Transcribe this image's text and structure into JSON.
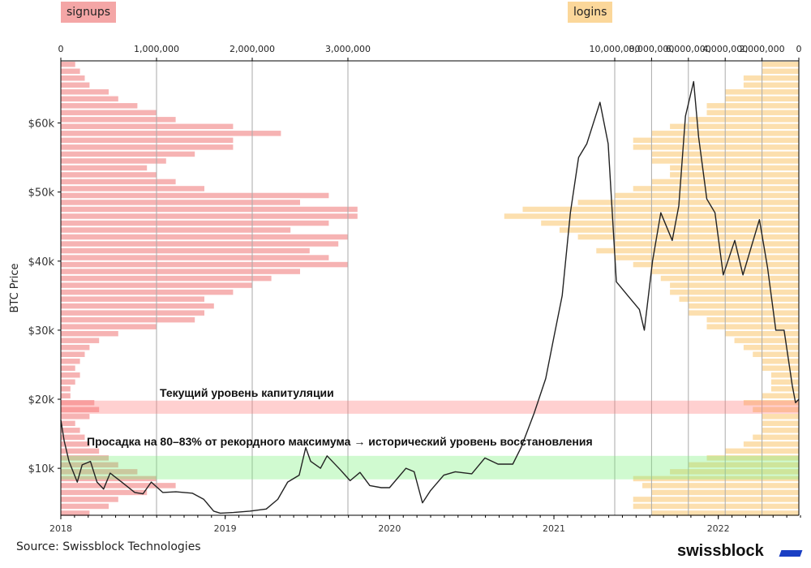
{
  "chart_data": {
    "type": "line",
    "ylabel": "BTC Price",
    "ylim": [
      3200,
      69000
    ],
    "xlim": [
      2018.0,
      2022.49
    ],
    "y_ticks": [
      {
        "v": 10000,
        "label": "$10k"
      },
      {
        "v": 20000,
        "label": "$20k"
      },
      {
        "v": 30000,
        "label": "$30k"
      },
      {
        "v": 40000,
        "label": "$40k"
      },
      {
        "v": 50000,
        "label": "$50k"
      },
      {
        "v": 60000,
        "label": "$60k"
      }
    ],
    "x_ticks": [
      {
        "v": 2018,
        "label": "2018"
      },
      {
        "v": 2019,
        "label": "2019"
      },
      {
        "v": 2020,
        "label": "2020"
      },
      {
        "v": 2021,
        "label": "2021"
      },
      {
        "v": 2022,
        "label": "2022"
      }
    ],
    "top_axis_signups": {
      "range": [
        0,
        7700000
      ],
      "ticks": [
        {
          "v": 0,
          "label": "0"
        },
        {
          "v": 1000000,
          "label": "1,000,000"
        },
        {
          "v": 2000000,
          "label": "2,000,000"
        },
        {
          "v": 3000000,
          "label": "3,000,000"
        }
      ]
    },
    "top_axis_logins": {
      "range_reversed": [
        0,
        40000000
      ],
      "ticks": [
        {
          "v": 0,
          "label": "0"
        },
        {
          "v": 2000000,
          "label": "2,000,000"
        },
        {
          "v": 4000000,
          "label": "4,000,000"
        },
        {
          "v": 6000000,
          "label": "6,000,000"
        },
        {
          "v": 8000000,
          "label": "8,000,000"
        },
        {
          "v": 10000000,
          "label": "10,000,000"
        }
      ]
    },
    "legend": [
      {
        "name": "signups",
        "color": "#f4a6a6"
      },
      {
        "name": "logins",
        "color": "#fbd79a"
      }
    ],
    "histogram_bin_start": 3000,
    "histogram_bin_width": 1000,
    "signups_millions": [
      0.3,
      0.5,
      0.6,
      0.9,
      1.2,
      1.0,
      0.8,
      0.6,
      0.5,
      0.4,
      0.3,
      0.25,
      0.2,
      0.15,
      0.3,
      0.4,
      0.35,
      0.1,
      0.1,
      0.15,
      0.2,
      0.15,
      0.2,
      0.25,
      0.3,
      0.4,
      0.6,
      1.0,
      1.4,
      1.5,
      1.6,
      1.5,
      1.8,
      2.0,
      2.2,
      2.5,
      3.0,
      2.8,
      2.6,
      2.9,
      3.0,
      2.4,
      2.8,
      3.1,
      3.1,
      2.5,
      2.8,
      1.5,
      1.2,
      1.0,
      0.9,
      1.1,
      1.4,
      1.8,
      1.8,
      2.3,
      1.8,
      1.2,
      1.0,
      0.8,
      0.6,
      0.5,
      0.3,
      0.25,
      0.2,
      0.15
    ],
    "logins_millions": [
      8,
      9,
      9,
      8,
      8.5,
      9,
      7,
      6,
      5,
      4,
      3,
      2.5,
      2,
      2,
      2,
      2.5,
      3,
      2,
      1.5,
      1.5,
      1.5,
      2,
      2,
      2.5,
      3,
      3.5,
      4,
      5,
      5,
      6,
      6,
      6.5,
      7,
      7,
      7.5,
      8,
      9,
      10,
      11,
      10,
      12,
      13,
      14,
      16,
      15,
      12,
      10,
      9,
      8,
      7,
      7,
      8,
      8,
      9,
      9,
      8,
      7,
      6,
      5,
      5,
      4,
      4,
      3,
      3,
      2,
      2
    ],
    "bands": [
      {
        "name": "capitulation",
        "low": 17900,
        "high": 19800,
        "color": "#ff7878",
        "label": "Текущий уровень капитуляции"
      },
      {
        "name": "recovery",
        "low": 8400,
        "high": 11800,
        "color": "#78f078",
        "label": "Просадка на 80–83% от рекордного максимума → исторический уровень восстановления"
      }
    ],
    "price": [
      [
        2018.0,
        17
      ],
      [
        2018.02,
        14
      ],
      [
        2018.05,
        11
      ],
      [
        2018.1,
        8
      ],
      [
        2018.13,
        10.5
      ],
      [
        2018.18,
        11
      ],
      [
        2018.22,
        8
      ],
      [
        2018.26,
        7
      ],
      [
        2018.3,
        9.3
      ],
      [
        2018.37,
        8
      ],
      [
        2018.45,
        6.5
      ],
      [
        2018.5,
        6.3
      ],
      [
        2018.55,
        8
      ],
      [
        2018.62,
        6.5
      ],
      [
        2018.7,
        6.6
      ],
      [
        2018.8,
        6.4
      ],
      [
        2018.87,
        5.5
      ],
      [
        2018.93,
        3.8
      ],
      [
        2018.97,
        3.5
      ],
      [
        2019.05,
        3.6
      ],
      [
        2019.15,
        3.8
      ],
      [
        2019.25,
        4.1
      ],
      [
        2019.32,
        5.5
      ],
      [
        2019.38,
        8
      ],
      [
        2019.45,
        9
      ],
      [
        2019.49,
        13
      ],
      [
        2019.52,
        11
      ],
      [
        2019.58,
        10
      ],
      [
        2019.62,
        11.8
      ],
      [
        2019.7,
        9.8
      ],
      [
        2019.76,
        8.2
      ],
      [
        2019.82,
        9.4
      ],
      [
        2019.88,
        7.5
      ],
      [
        2019.95,
        7.2
      ],
      [
        2020.0,
        7.2
      ],
      [
        2020.1,
        10
      ],
      [
        2020.15,
        9.5
      ],
      [
        2020.2,
        5.0
      ],
      [
        2020.25,
        6.8
      ],
      [
        2020.33,
        9
      ],
      [
        2020.4,
        9.5
      ],
      [
        2020.5,
        9.2
      ],
      [
        2020.58,
        11.5
      ],
      [
        2020.66,
        10.6
      ],
      [
        2020.75,
        10.6
      ],
      [
        2020.8,
        13
      ],
      [
        2020.88,
        18
      ],
      [
        2020.95,
        23
      ],
      [
        2021.0,
        29
      ],
      [
        2021.05,
        35
      ],
      [
        2021.1,
        47
      ],
      [
        2021.15,
        55
      ],
      [
        2021.2,
        57
      ],
      [
        2021.28,
        63
      ],
      [
        2021.33,
        57
      ],
      [
        2021.38,
        37
      ],
      [
        2021.45,
        35
      ],
      [
        2021.52,
        33
      ],
      [
        2021.55,
        30
      ],
      [
        2021.6,
        40
      ],
      [
        2021.65,
        47
      ],
      [
        2021.72,
        43
      ],
      [
        2021.76,
        48
      ],
      [
        2021.8,
        61
      ],
      [
        2021.85,
        66
      ],
      [
        2021.88,
        58
      ],
      [
        2021.93,
        49
      ],
      [
        2021.98,
        47
      ],
      [
        2022.03,
        38
      ],
      [
        2022.1,
        43
      ],
      [
        2022.15,
        38
      ],
      [
        2022.2,
        42
      ],
      [
        2022.25,
        46
      ],
      [
        2022.3,
        39
      ],
      [
        2022.35,
        30
      ],
      [
        2022.4,
        30
      ],
      [
        2022.45,
        22
      ],
      [
        2022.47,
        19.5
      ],
      [
        2022.49,
        20
      ]
    ],
    "price_units": "thousand USD"
  },
  "source": "Source: Swissblock Technologies",
  "logo": "swissblock"
}
